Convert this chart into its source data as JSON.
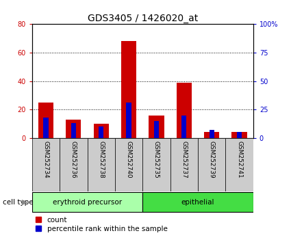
{
  "title": "GDS3405 / 1426020_at",
  "samples": [
    "GSM252734",
    "GSM252736",
    "GSM252738",
    "GSM252740",
    "GSM252735",
    "GSM252737",
    "GSM252739",
    "GSM252741"
  ],
  "count_values": [
    25,
    13,
    10,
    68,
    16,
    39,
    4,
    4
  ],
  "percentile_values": [
    18,
    13,
    10,
    31,
    15,
    20,
    7,
    5
  ],
  "left_ylim": [
    0,
    80
  ],
  "right_ylim": [
    0,
    100
  ],
  "left_yticks": [
    0,
    20,
    40,
    60,
    80
  ],
  "right_yticks": [
    0,
    25,
    50,
    75,
    100
  ],
  "right_yticklabels": [
    "0",
    "25",
    "50",
    "75",
    "100%"
  ],
  "groups": [
    {
      "label": "erythroid precursor",
      "start": 0,
      "end": 4
    },
    {
      "label": "epithelial",
      "start": 4,
      "end": 8
    }
  ],
  "cell_type_label": "cell type",
  "legend_count_label": "count",
  "legend_percentile_label": "percentile rank within the sample",
  "count_color": "#cc0000",
  "percentile_color": "#0000cc",
  "group_color_1": "#aaffaa",
  "group_color_2": "#44dd44",
  "tick_label_bg": "#cccccc",
  "title_fontsize": 10,
  "tick_fontsize": 7,
  "legend_fontsize": 7.5
}
